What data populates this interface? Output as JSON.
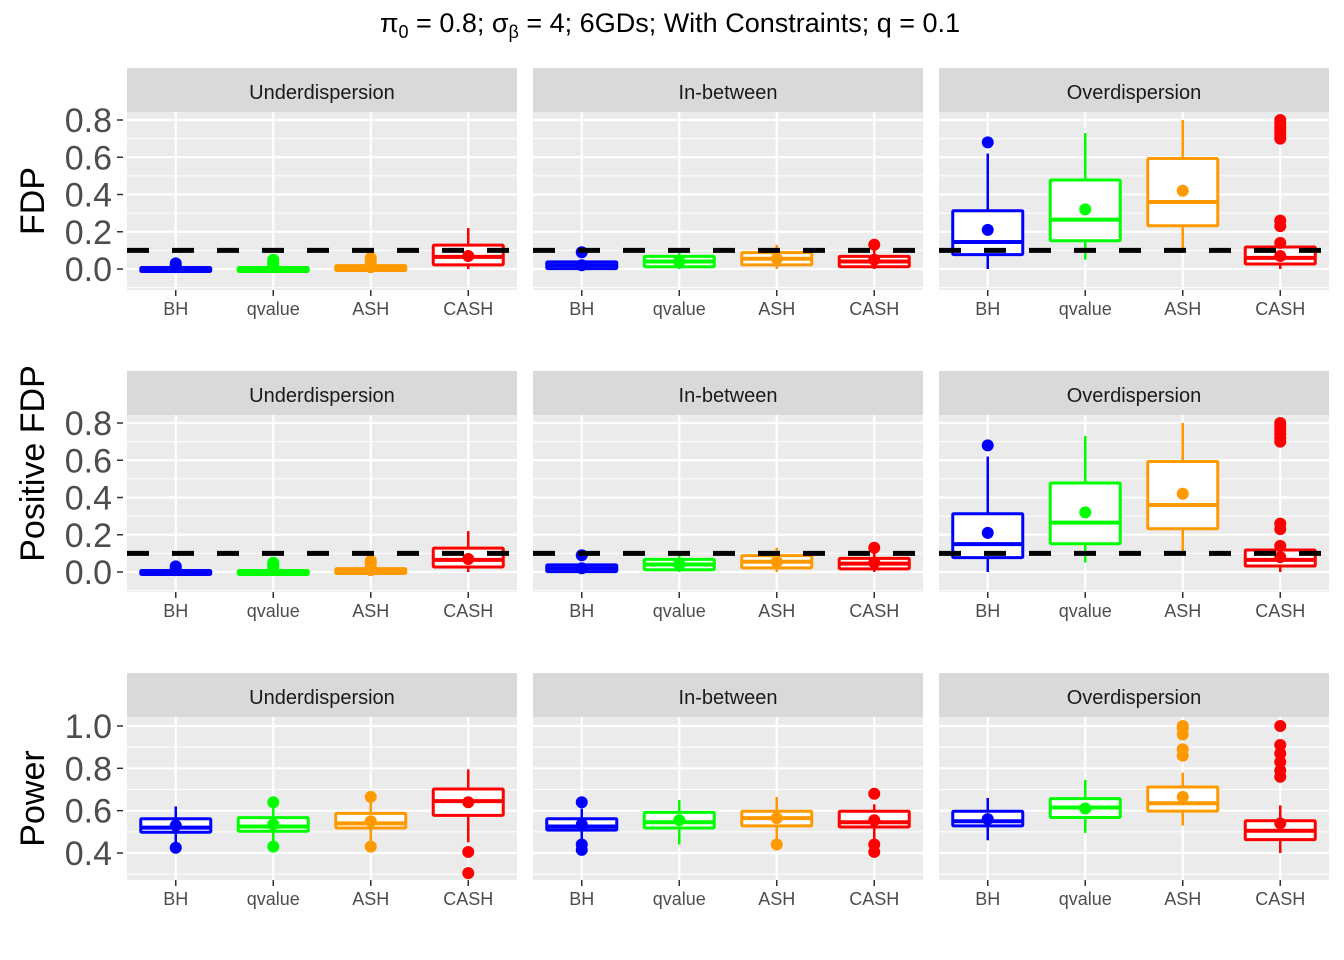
{
  "chart_data": {
    "type": "box",
    "title": {
      "pi_symbol": "π",
      "pi_sub": "0",
      "pi_value": " = 0.8; ",
      "sigma_symbol": "σ",
      "sigma_sub": "β",
      "rest": " = 4; 6GDs; With Constraints; q = 0.1"
    },
    "categories": [
      "BH",
      "qvalue",
      "ASH",
      "CASH"
    ],
    "colors": {
      "BH": "#0000ff",
      "qvalue": "#00ff00",
      "ASH": "#ff9900",
      "CASH": "#ff0000"
    },
    "facet_columns": [
      "Underdispersion",
      "In-between",
      "Overdispersion"
    ],
    "reference_line": {
      "y": 0.1,
      "style": "dashed",
      "color": "#000000",
      "rows": [
        "FDP",
        "Positive FDP"
      ]
    },
    "rows": [
      {
        "ylabel": "FDP",
        "ylim": [
          -0.05,
          0.85
        ],
        "yticks": [
          0.0,
          0.2,
          0.4,
          0.6,
          0.8
        ],
        "ytick_labels": [
          "0.0",
          "0.2",
          "0.4",
          "0.6",
          "0.8"
        ],
        "panels": [
          {
            "facet": "Underdispersion",
            "boxes": [
              {
                "method": "BH",
                "q1": 0.0,
                "median": 0.0,
                "q3": 0.0,
                "lo": 0.0,
                "hi": 0.0,
                "mean": 0.01,
                "outliers": [
                  0.02,
                  0.03,
                  0.01
                ]
              },
              {
                "method": "qvalue",
                "q1": 0.0,
                "median": 0.0,
                "q3": 0.0,
                "lo": 0.0,
                "hi": 0.0,
                "mean": 0.01,
                "outliers": [
                  0.02,
                  0.03,
                  0.04,
                  0.05
                ]
              },
              {
                "method": "ASH",
                "q1": 0.0,
                "median": 0.005,
                "q3": 0.01,
                "lo": 0.0,
                "hi": 0.02,
                "mean": 0.01,
                "outliers": [
                  0.03,
                  0.05,
                  0.06
                ]
              },
              {
                "method": "CASH",
                "q1": 0.03,
                "median": 0.065,
                "q3": 0.12,
                "lo": 0.0,
                "hi": 0.22,
                "mean": 0.07,
                "outliers": []
              }
            ]
          },
          {
            "facet": "In-between",
            "boxes": [
              {
                "method": "BH",
                "q1": 0.01,
                "median": 0.02,
                "q3": 0.03,
                "lo": 0.01,
                "hi": 0.05,
                "mean": 0.02,
                "outliers": [
                  0.09
                ]
              },
              {
                "method": "qvalue",
                "q1": 0.02,
                "median": 0.04,
                "q3": 0.06,
                "lo": 0.0,
                "hi": 0.1,
                "mean": 0.04,
                "outliers": []
              },
              {
                "method": "ASH",
                "q1": 0.03,
                "median": 0.055,
                "q3": 0.08,
                "lo": 0.0,
                "hi": 0.13,
                "mean": 0.055,
                "outliers": []
              },
              {
                "method": "CASH",
                "q1": 0.02,
                "median": 0.04,
                "q3": 0.06,
                "lo": 0.0,
                "hi": 0.1,
                "mean": 0.05,
                "outliers": [
                  0.13
                ]
              }
            ]
          },
          {
            "facet": "Overdispersion",
            "boxes": [
              {
                "method": "BH",
                "q1": 0.085,
                "median": 0.145,
                "q3": 0.305,
                "lo": 0.0,
                "hi": 0.62,
                "mean": 0.21,
                "outliers": [
                  0.68
                ]
              },
              {
                "method": "qvalue",
                "q1": 0.16,
                "median": 0.265,
                "q3": 0.47,
                "lo": 0.05,
                "hi": 0.73,
                "mean": 0.32,
                "outliers": []
              },
              {
                "method": "ASH",
                "q1": 0.24,
                "median": 0.36,
                "q3": 0.585,
                "lo": 0.1,
                "hi": 0.8,
                "mean": 0.42,
                "outliers": []
              },
              {
                "method": "CASH",
                "q1": 0.035,
                "median": 0.06,
                "q3": 0.11,
                "lo": 0.0,
                "hi": 0.11,
                "mean": 0.07,
                "outliers": [
                  0.14,
                  0.23,
                  0.26,
                  0.7,
                  0.72,
                  0.74,
                  0.76,
                  0.78,
                  0.8
                ]
              }
            ]
          }
        ]
      },
      {
        "ylabel": "Positive FDP",
        "ylim": [
          -0.05,
          0.85
        ],
        "yticks": [
          0.0,
          0.2,
          0.4,
          0.6,
          0.8
        ],
        "ytick_labels": [
          "0.0",
          "0.2",
          "0.4",
          "0.6",
          "0.8"
        ],
        "panels": [
          {
            "facet": "Underdispersion",
            "boxes": [
              {
                "method": "BH",
                "q1": 0.0,
                "median": 0.0,
                "q3": 0.0,
                "lo": 0.0,
                "hi": 0.0,
                "mean": 0.01,
                "outliers": [
                  0.02,
                  0.03,
                  0.01
                ]
              },
              {
                "method": "qvalue",
                "q1": 0.0,
                "median": 0.0,
                "q3": 0.0,
                "lo": 0.0,
                "hi": 0.0,
                "mean": 0.01,
                "outliers": [
                  0.02,
                  0.03,
                  0.04,
                  0.05
                ]
              },
              {
                "method": "ASH",
                "q1": 0.0,
                "median": 0.005,
                "q3": 0.01,
                "lo": 0.0,
                "hi": 0.02,
                "mean": 0.01,
                "outliers": [
                  0.03,
                  0.05,
                  0.06
                ]
              },
              {
                "method": "CASH",
                "q1": 0.035,
                "median": 0.065,
                "q3": 0.12,
                "lo": 0.0,
                "hi": 0.22,
                "mean": 0.07,
                "outliers": []
              }
            ]
          },
          {
            "facet": "In-between",
            "boxes": [
              {
                "method": "BH",
                "q1": 0.01,
                "median": 0.02,
                "q3": 0.03,
                "lo": 0.01,
                "hi": 0.05,
                "mean": 0.02,
                "outliers": [
                  0.09
                ]
              },
              {
                "method": "qvalue",
                "q1": 0.02,
                "median": 0.04,
                "q3": 0.06,
                "lo": 0.0,
                "hi": 0.1,
                "mean": 0.04,
                "outliers": []
              },
              {
                "method": "ASH",
                "q1": 0.03,
                "median": 0.055,
                "q3": 0.08,
                "lo": 0.0,
                "hi": 0.13,
                "mean": 0.055,
                "outliers": []
              },
              {
                "method": "CASH",
                "q1": 0.025,
                "median": 0.045,
                "q3": 0.065,
                "lo": 0.0,
                "hi": 0.1,
                "mean": 0.05,
                "outliers": [
                  0.13
                ]
              }
            ]
          },
          {
            "facet": "Overdispersion",
            "boxes": [
              {
                "method": "BH",
                "q1": 0.085,
                "median": 0.15,
                "q3": 0.305,
                "lo": 0.0,
                "hi": 0.62,
                "mean": 0.21,
                "outliers": [
                  0.68
                ]
              },
              {
                "method": "qvalue",
                "q1": 0.16,
                "median": 0.265,
                "q3": 0.47,
                "lo": 0.05,
                "hi": 0.73,
                "mean": 0.32,
                "outliers": []
              },
              {
                "method": "ASH",
                "q1": 0.24,
                "median": 0.36,
                "q3": 0.585,
                "lo": 0.1,
                "hi": 0.8,
                "mean": 0.42,
                "outliers": []
              },
              {
                "method": "CASH",
                "q1": 0.04,
                "median": 0.065,
                "q3": 0.11,
                "lo": 0.0,
                "hi": 0.11,
                "mean": 0.08,
                "outliers": [
                  0.14,
                  0.23,
                  0.26,
                  0.7,
                  0.72,
                  0.74,
                  0.76,
                  0.78,
                  0.8
                ]
              }
            ]
          }
        ]
      },
      {
        "ylabel": "Power",
        "ylim": [
          0.28,
          1.03
        ],
        "yticks": [
          0.4,
          0.6,
          0.8,
          1.0
        ],
        "ytick_labels": [
          "0.4",
          "0.6",
          "0.8",
          "1.0"
        ],
        "panels": [
          {
            "facet": "Underdispersion",
            "boxes": [
              {
                "method": "BH",
                "q1": 0.505,
                "median": 0.52,
                "q3": 0.555,
                "lo": 0.44,
                "hi": 0.62,
                "mean": 0.53,
                "outliers": [
                  0.425
                ]
              },
              {
                "method": "qvalue",
                "q1": 0.51,
                "median": 0.525,
                "q3": 0.56,
                "lo": 0.45,
                "hi": 0.62,
                "mean": 0.535,
                "outliers": [
                  0.43,
                  0.64
                ]
              },
              {
                "method": "ASH",
                "q1": 0.525,
                "median": 0.54,
                "q3": 0.58,
                "lo": 0.45,
                "hi": 0.64,
                "mean": 0.55,
                "outliers": [
                  0.43,
                  0.665
                ]
              },
              {
                "method": "CASH",
                "q1": 0.585,
                "median": 0.645,
                "q3": 0.695,
                "lo": 0.45,
                "hi": 0.795,
                "mean": 0.64,
                "outliers": [
                  0.405,
                  0.305
                ]
              }
            ]
          },
          {
            "facet": "In-between",
            "boxes": [
              {
                "method": "BH",
                "q1": 0.515,
                "median": 0.525,
                "q3": 0.555,
                "lo": 0.455,
                "hi": 0.61,
                "mean": 0.535,
                "outliers": [
                  0.64,
                  0.44,
                  0.415
                ]
              },
              {
                "method": "qvalue",
                "q1": 0.525,
                "median": 0.545,
                "q3": 0.585,
                "lo": 0.44,
                "hi": 0.65,
                "mean": 0.555,
                "outliers": []
              },
              {
                "method": "ASH",
                "q1": 0.535,
                "median": 0.565,
                "q3": 0.59,
                "lo": 0.465,
                "hi": 0.665,
                "mean": 0.565,
                "outliers": [
                  0.44
                ]
              },
              {
                "method": "CASH",
                "q1": 0.53,
                "median": 0.545,
                "q3": 0.59,
                "lo": 0.46,
                "hi": 0.63,
                "mean": 0.555,
                "outliers": [
                  0.68,
                  0.44,
                  0.405
                ]
              }
            ]
          },
          {
            "facet": "Overdispersion",
            "boxes": [
              {
                "method": "BH",
                "q1": 0.535,
                "median": 0.55,
                "q3": 0.59,
                "lo": 0.46,
                "hi": 0.66,
                "mean": 0.56,
                "outliers": []
              },
              {
                "method": "qvalue",
                "q1": 0.575,
                "median": 0.615,
                "q3": 0.65,
                "lo": 0.495,
                "hi": 0.745,
                "mean": 0.61,
                "outliers": []
              },
              {
                "method": "ASH",
                "q1": 0.605,
                "median": 0.635,
                "q3": 0.705,
                "lo": 0.53,
                "hi": 0.78,
                "mean": 0.665,
                "outliers": [
                  0.86,
                  0.89,
                  0.96,
                  0.99,
                  1.0
                ]
              },
              {
                "method": "CASH",
                "q1": 0.47,
                "median": 0.505,
                "q3": 0.545,
                "lo": 0.4,
                "hi": 0.625,
                "mean": 0.54,
                "outliers": [
                  0.76,
                  0.79,
                  0.83,
                  0.87,
                  0.91,
                  1.0
                ]
              }
            ]
          }
        ]
      }
    ]
  }
}
